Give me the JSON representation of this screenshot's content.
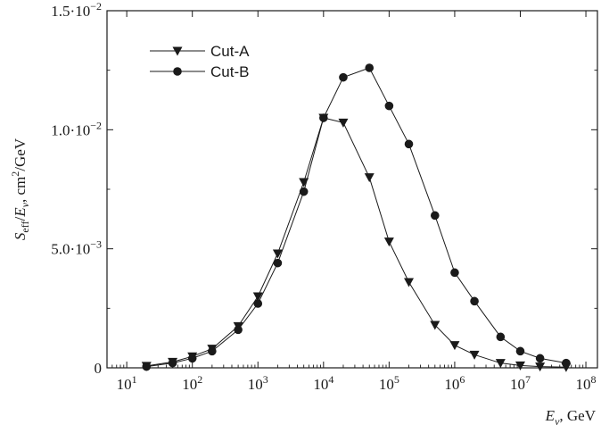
{
  "chart_data": {
    "type": "line",
    "x_scale": "log",
    "xlim": [
      5,
      150000000
    ],
    "ylim": [
      0,
      0.015
    ],
    "xlabel": {
      "base": "E",
      "sub": "ν",
      "rest": ", GeV"
    },
    "ylabel": {
      "s": "S",
      "s_sub": "eff",
      "slash": "/",
      "e": "E",
      "e_sub": "ν",
      "unit": ", cm",
      "unit_sup": "2",
      "unit_tail": "/GeV"
    },
    "x_ticks": [
      {
        "value": 10,
        "base": "10",
        "exp": "1"
      },
      {
        "value": 100,
        "base": "10",
        "exp": "2"
      },
      {
        "value": 1000,
        "base": "10",
        "exp": "3"
      },
      {
        "value": 10000,
        "base": "10",
        "exp": "4"
      },
      {
        "value": 100000,
        "base": "10",
        "exp": "5"
      },
      {
        "value": 1000000,
        "base": "10",
        "exp": "6"
      },
      {
        "value": 10000000,
        "base": "10",
        "exp": "7"
      },
      {
        "value": 100000000,
        "base": "10",
        "exp": "8"
      }
    ],
    "y_ticks": [
      {
        "value": 0,
        "mant": "0",
        "exp": ""
      },
      {
        "value": 0.005,
        "mant": "5.0·10",
        "exp": "−3"
      },
      {
        "value": 0.01,
        "mant": "1.0·10",
        "exp": "−2"
      },
      {
        "value": 0.015,
        "mant": "1.5·10",
        "exp": "−2"
      }
    ],
    "legend_position": "top-left",
    "grid": false,
    "series": [
      {
        "name": "Cut-A",
        "marker": "triangle-down",
        "x": [
          20,
          50,
          100,
          200,
          500,
          1000,
          2000,
          5000,
          10000,
          20000,
          50000,
          100000,
          200000,
          500000,
          1000000,
          2000000,
          5000000,
          10000000,
          20000000,
          50000000
        ],
        "y": [
          8e-05,
          0.00025,
          0.00048,
          0.0008,
          0.00175,
          0.003,
          0.0048,
          0.0078,
          0.0105,
          0.0103,
          0.008,
          0.0053,
          0.0036,
          0.0018,
          0.00095,
          0.00055,
          0.0002,
          0.0001,
          5e-05,
          3e-05
        ]
      },
      {
        "name": "Cut-B",
        "marker": "circle",
        "x": [
          20,
          50,
          100,
          200,
          500,
          1000,
          2000,
          5000,
          10000,
          20000,
          50000,
          100000,
          200000,
          500000,
          1000000,
          2000000,
          5000000,
          10000000,
          20000000,
          50000000
        ],
        "y": [
          5e-05,
          0.0002,
          0.0004,
          0.0007,
          0.0016,
          0.0027,
          0.0044,
          0.0074,
          0.0105,
          0.0122,
          0.0126,
          0.011,
          0.0094,
          0.0064,
          0.004,
          0.0028,
          0.0013,
          0.0007,
          0.0004,
          0.0002
        ]
      }
    ]
  }
}
